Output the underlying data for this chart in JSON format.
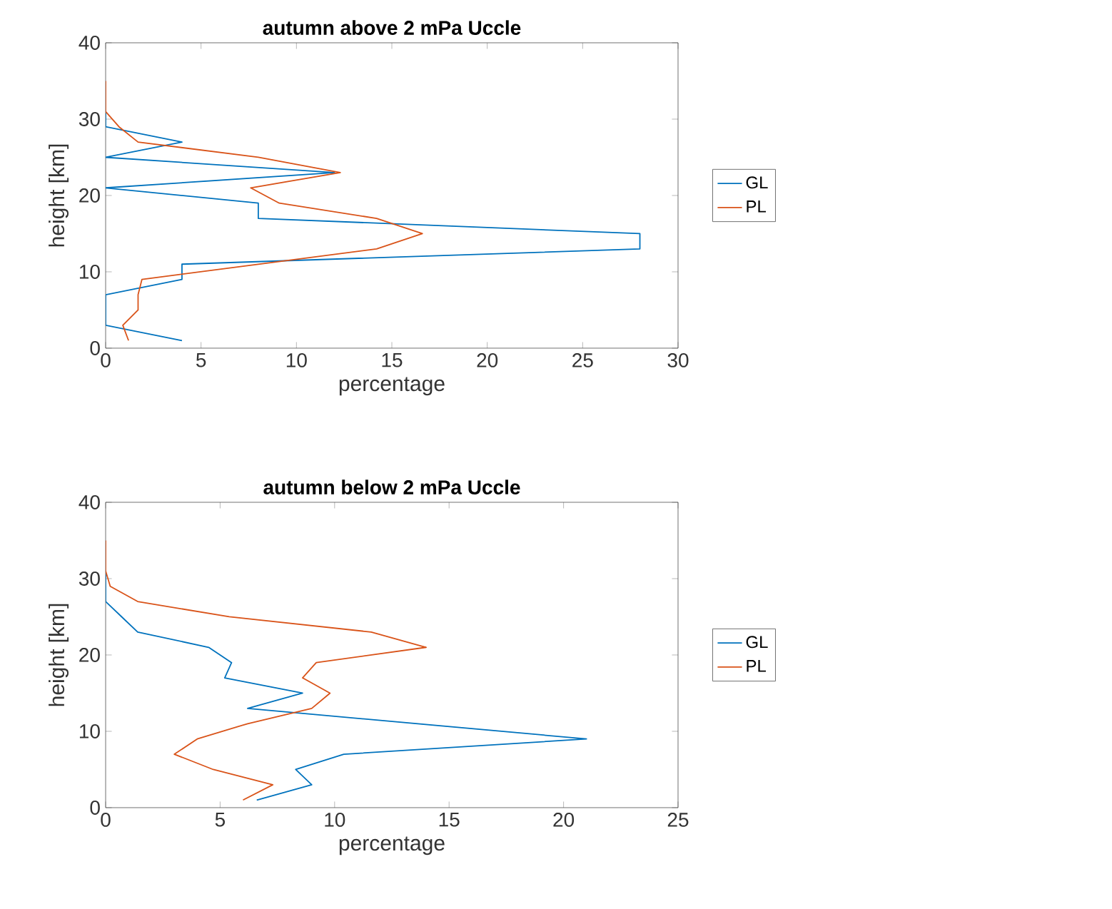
{
  "chart_data": [
    {
      "type": "line",
      "title": "autumn above 2 mPa Uccle",
      "xlabel": "percentage",
      "ylabel": "height [km]",
      "xlim": [
        0,
        30
      ],
      "ylim": [
        0,
        40
      ],
      "xticks": [
        0,
        5,
        10,
        15,
        20,
        25,
        30
      ],
      "yticks": [
        0,
        10,
        20,
        30,
        40
      ],
      "legend": "right",
      "grid": false,
      "series": [
        {
          "name": "GL",
          "color": "#0072bd",
          "x": [
            4,
            0,
            0,
            4,
            4,
            28,
            28,
            8,
            8,
            0,
            12,
            0,
            4,
            0,
            0
          ],
          "values": [
            1,
            3,
            7,
            9,
            11,
            13,
            15,
            17,
            19,
            21,
            23,
            25,
            27,
            29,
            31
          ]
        },
        {
          "name": "PL",
          "color": "#d95319",
          "x": [
            1.2,
            0.9,
            1.7,
            1.7,
            1.9,
            8,
            14.2,
            16.6,
            14.2,
            9.1,
            7.6,
            12.3,
            8,
            1.7,
            0.7,
            0,
            0
          ],
          "values": [
            1,
            3,
            5,
            7,
            9,
            11,
            13,
            15,
            17,
            19,
            21,
            23,
            25,
            27,
            29,
            31,
            35
          ]
        }
      ]
    },
    {
      "type": "line",
      "title": "autumn below 2 mPa Uccle",
      "xlabel": "percentage",
      "ylabel": "height [km]",
      "xlim": [
        0,
        25
      ],
      "ylim": [
        0,
        40
      ],
      "xticks": [
        0,
        5,
        10,
        15,
        20,
        25
      ],
      "yticks": [
        0,
        10,
        20,
        30,
        40
      ],
      "legend": "right",
      "grid": false,
      "series": [
        {
          "name": "GL",
          "color": "#0072bd",
          "x": [
            6.6,
            9,
            8.3,
            10.4,
            21,
            13.6,
            6.2,
            8.6,
            5.2,
            5.5,
            4.5,
            1.4,
            0.7,
            0,
            0
          ],
          "values": [
            1,
            3,
            5,
            7,
            9,
            11,
            13,
            15,
            17,
            19,
            21,
            23,
            25,
            27,
            31
          ]
        },
        {
          "name": "PL",
          "color": "#d95319",
          "x": [
            6,
            7.3,
            4.7,
            3,
            4,
            6.2,
            9,
            9.8,
            8.6,
            9.2,
            14,
            11.6,
            5.4,
            1.4,
            0.2,
            0,
            0
          ],
          "values": [
            1,
            3,
            5,
            7,
            9,
            11,
            13,
            15,
            17,
            19,
            21,
            23,
            25,
            27,
            29,
            31,
            35
          ]
        }
      ]
    }
  ]
}
